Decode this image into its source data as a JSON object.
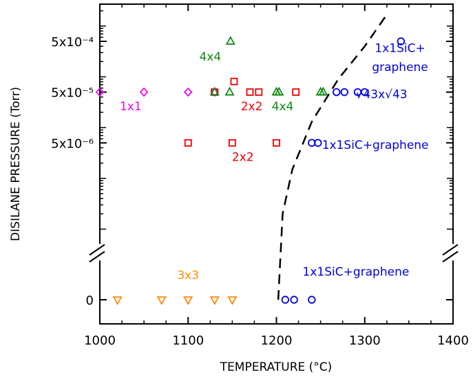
{
  "chart_data": {
    "type": "scatter",
    "xlabel": "TEMPERATURE (°C)",
    "ylabel": "DISILANE PRESSURE (Torr)",
    "xlim": [
      1000,
      1400
    ],
    "x_ticks": [
      "1000",
      "1100",
      "1200",
      "1300",
      "1400"
    ],
    "y_ticks": [
      "0",
      "5x10⁻⁶",
      "5x10⁻⁵",
      "5x10⁻⁴"
    ],
    "y_scale": "log with broken axis; 0 shown in separate lower band",
    "grid": false,
    "colors": {
      "1x1": "#ee00ee",
      "2x2": "#ee0000",
      "4x4": "#118811",
      "3x3": "#ff8800",
      "graphene": "#0000dd",
      "boundary": "#000000"
    },
    "series": [
      {
        "marker": "diamond",
        "color_key": "1x1",
        "points": [
          [
            1000,
            5e-05
          ],
          [
            1050,
            5e-05
          ],
          [
            1100,
            5e-05
          ],
          [
            1130,
            5e-05
          ]
        ]
      },
      {
        "marker": "square",
        "color_key": "2x2",
        "points": [
          [
            1130,
            5e-05
          ],
          [
            1152,
            8.1e-05
          ],
          [
            1170,
            5e-05
          ],
          [
            1180,
            5e-05
          ],
          [
            1222,
            5e-05
          ],
          [
            1100,
            5e-06
          ],
          [
            1150,
            5e-06
          ],
          [
            1200,
            5e-06
          ]
        ]
      },
      {
        "marker": "triangle-up",
        "color_key": "4x4",
        "points": [
          [
            1130,
            5e-05
          ],
          [
            1147,
            5e-05
          ],
          [
            1148,
            0.0005
          ],
          [
            1200,
            5e-05
          ],
          [
            1203,
            5e-05
          ],
          [
            1250,
            5e-05
          ],
          [
            1253,
            5e-05
          ]
        ]
      },
      {
        "marker": "triangle-down",
        "color_key": "3x3",
        "points": [
          [
            1020,
            0
          ],
          [
            1070,
            0
          ],
          [
            1100,
            0
          ],
          [
            1130,
            0
          ],
          [
            1150,
            0
          ]
        ]
      },
      {
        "marker": "circle",
        "color_key": "graphene",
        "points": [
          [
            1268,
            5e-05
          ],
          [
            1277,
            5e-05
          ],
          [
            1292,
            5e-05
          ],
          [
            1300,
            5e-05
          ],
          [
            1341,
            0.0005
          ],
          [
            1240,
            5e-06
          ],
          [
            1247,
            5e-06
          ],
          [
            1210,
            0
          ],
          [
            1220,
            0
          ],
          [
            1240,
            0
          ]
        ]
      }
    ],
    "boundary_line": {
      "style": "dashed",
      "points": [
        [
          1202,
          0
        ],
        [
          1207,
          2e-07
        ],
        [
          1218,
          1.5e-06
        ],
        [
          1240,
          1.3e-05
        ],
        [
          1270,
          9e-05
        ],
        [
          1300,
          0.0004
        ],
        [
          1323,
          0.0015
        ]
      ]
    },
    "annotations": [
      {
        "text": "1x1",
        "x": 1035,
        "y": 2.2e-05,
        "color_key": "1x1"
      },
      {
        "text": "4x4",
        "x": 1125,
        "y": 0.00021,
        "color_key": "4x4"
      },
      {
        "text": "2x2",
        "x": 1172,
        "y": 2.2e-05,
        "color_key": "2x2"
      },
      {
        "text": "4x4",
        "x": 1207,
        "y": 2.2e-05,
        "color_key": "4x4"
      },
      {
        "text": "2x2",
        "x": 1162,
        "y": 2.2e-06,
        "color_key": "2x2"
      },
      {
        "text": "3x3",
        "x": 1100,
        "y": "band-0.25",
        "color_key": "3x3"
      },
      {
        "text": "1x1SiC+",
        "x": 1340,
        "y": 0.00031,
        "color_key": "graphene"
      },
      {
        "text": "graphene",
        "x": 1340,
        "y": 0.00013,
        "color_key": "graphene"
      },
      {
        "text": "√43x√43",
        "x": 1319,
        "y": 3.8e-05,
        "color_key": "graphene"
      },
      {
        "text": "1x1SiC+graphene",
        "x": 1312,
        "y": 3.8e-06,
        "color_key": "graphene"
      },
      {
        "text": "1x1SiC+graphene",
        "x": 1290,
        "y": "band-0.3",
        "color_key": "graphene"
      }
    ]
  }
}
